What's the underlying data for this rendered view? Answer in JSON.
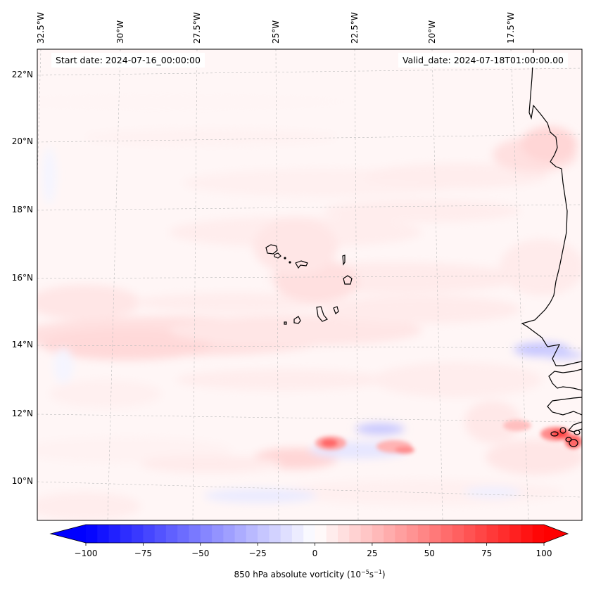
{
  "map": {
    "variable": "850 hPa absolute vorticity",
    "start_date_label": "Start date: 2024-07-16_00:00:00",
    "valid_date_label": "Valid_date: 2024-07-18T01:00:00.00",
    "extent": {
      "lon_min": -32.8,
      "lon_max": -15.8,
      "lat_min": 8.9,
      "lat_max": 22.8
    },
    "lon_labels": [
      "32.5°W",
      "30°W",
      "27.5°W",
      "25°W",
      "22.5°W",
      "20°W",
      "17.5°W"
    ],
    "lat_labels": [
      "22°N",
      "20°N",
      "18°N",
      "16°N",
      "14°N",
      "12°N",
      "10°N"
    ],
    "features": [
      "Cape Verde islands",
      "West African coastline (Mauritania, Senegal, Gambia, Guinea-Bissau)"
    ],
    "notable_maxima": [
      {
        "approx_lon": -23.6,
        "approx_lat": 11.2,
        "approx_value": 60
      },
      {
        "approx_lon": -16.2,
        "approx_lat": 11.4,
        "approx_value": 80
      },
      {
        "approx_lon": -20.9,
        "approx_lat": 11.3,
        "approx_value": 45
      }
    ],
    "notable_minima": [
      {
        "approx_lon": -21.5,
        "approx_lat": 11.6,
        "approx_value": -20
      },
      {
        "approx_lon": -16.5,
        "approx_lat": 13.8,
        "approx_value": -15
      }
    ]
  },
  "colorbar": {
    "min": -100,
    "max": 100,
    "step": 5,
    "extend": "both",
    "colormap": "bwr",
    "ticks": [
      "−100",
      "−75",
      "−50",
      "−25",
      "0",
      "25",
      "50",
      "75",
      "100"
    ],
    "label_main": "850 hPa absolute vorticity (10",
    "label_exp1": "−5",
    "label_mid": "s",
    "label_exp2": "−1",
    "label_end": ")",
    "color_low": "#0000ff",
    "color_mid": "#ffffff",
    "color_high": "#ff0000"
  }
}
